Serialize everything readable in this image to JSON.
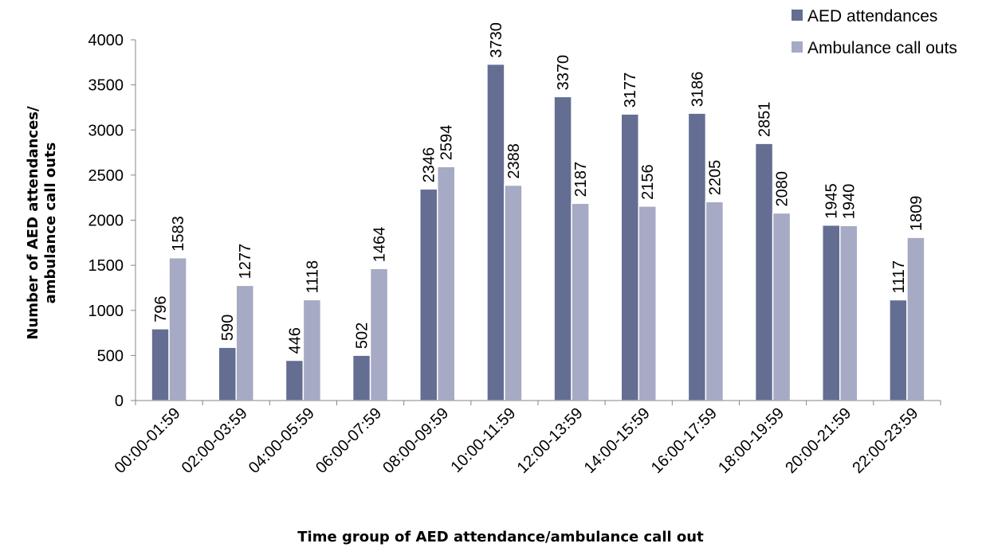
{
  "chart_data": {
    "type": "bar",
    "title": "",
    "xlabel": "Time group of AED attendance/ambulance call out",
    "ylabel_lines": [
      "Number of AED attendances/",
      "ambulance call outs"
    ],
    "ylim": [
      0,
      4000
    ],
    "yticks": [
      0,
      500,
      1000,
      1500,
      2000,
      2500,
      3000,
      3500,
      4000
    ],
    "grid": false,
    "legend_position": "top-right",
    "categories": [
      "00:00-01:59",
      "02:00-03:59",
      "04:00-05:59",
      "06:00-07:59",
      "08:00-09:59",
      "10:00-11:59",
      "12:00-13:59",
      "14:00-15:59",
      "16:00-17:59",
      "18:00-19:59",
      "20:00-21:59",
      "22:00-23:59"
    ],
    "series": [
      {
        "name": "AED attendances",
        "color": "#646e93",
        "values": [
          796,
          590,
          446,
          502,
          2346,
          3730,
          3370,
          3177,
          3186,
          2851,
          1945,
          1117
        ]
      },
      {
        "name": "Ambulance call outs",
        "color": "#a6aac4",
        "values": [
          1583,
          1277,
          1118,
          1464,
          2594,
          2388,
          2187,
          2156,
          2205,
          2080,
          1940,
          1809
        ]
      }
    ]
  }
}
